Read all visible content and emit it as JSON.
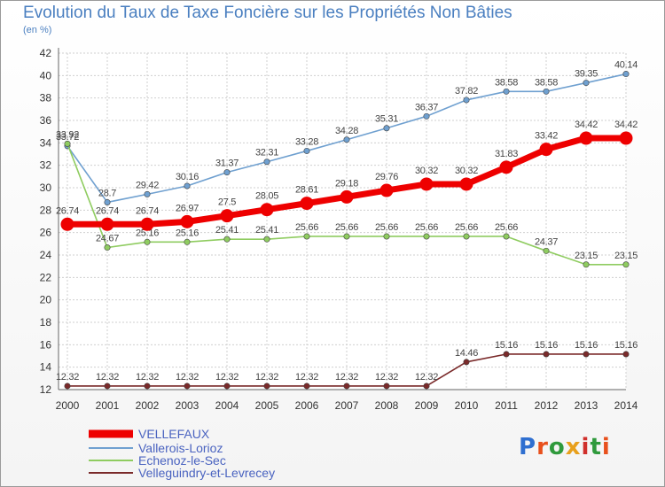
{
  "title": "Evolution du Taux de Taxe Foncière sur les Propriétés Non Bâties",
  "unit": "(en %)",
  "logo": "Proxiti",
  "colors": {
    "title": "#4a7fc0",
    "grid": "#cfcfcf",
    "axis": "#666666"
  },
  "chart_data": {
    "type": "line",
    "x": [
      "2000",
      "2001",
      "2002",
      "2003",
      "2004",
      "2005",
      "2006",
      "2007",
      "2008",
      "2009",
      "2010",
      "2011",
      "2012",
      "2013",
      "2014"
    ],
    "ylim": [
      12,
      42
    ],
    "yticks": [
      12,
      14,
      16,
      18,
      20,
      22,
      24,
      26,
      28,
      30,
      32,
      34,
      36,
      38,
      40,
      42
    ],
    "grid": true,
    "legend_position": "bottom-left",
    "series": [
      {
        "name": "VELLEFAUX",
        "color": "#ee0000",
        "values": [
          26.74,
          26.74,
          26.74,
          26.97,
          27.5,
          28.05,
          28.61,
          29.18,
          29.76,
          30.32,
          30.32,
          31.83,
          33.42,
          34.42,
          34.42
        ],
        "labels": [
          "26.74",
          "26.74",
          "26.74",
          "26.97",
          "27.5",
          "28.05",
          "28.61",
          "29.18",
          "29.76",
          "30.32",
          "30.32",
          "31.83",
          "33.42",
          "34.42",
          "34.42"
        ]
      },
      {
        "name": "Vallerois-Lorioz",
        "color": "#6fa0d0",
        "values": [
          33.72,
          28.7,
          29.42,
          30.16,
          31.37,
          32.31,
          33.28,
          34.28,
          35.31,
          36.37,
          37.82,
          38.58,
          38.58,
          39.35,
          40.14
        ],
        "labels": [
          "33.72",
          "28.7",
          "29.42",
          "30.16",
          "31.37",
          "32.31",
          "33.28",
          "34.28",
          "35.31",
          "36.37",
          "37.82",
          "38.58",
          "38.58",
          "39.35",
          "40.14"
        ]
      },
      {
        "name": "Echenoz-le-Sec",
        "color": "#8fcc60",
        "values": [
          33.92,
          24.67,
          25.16,
          25.16,
          25.41,
          25.41,
          25.66,
          25.66,
          25.66,
          25.66,
          25.66,
          25.66,
          24.37,
          23.15,
          23.15
        ],
        "labels": [
          "33.92",
          "24.67",
          "25.16",
          "25.16",
          "25.41",
          "25.41",
          "25.66",
          "25.66",
          "25.66",
          "25.66",
          "25.66",
          "25.66",
          "24.37",
          "23.15",
          "23.15"
        ]
      },
      {
        "name": "Velleguindry-et-Levrecey",
        "color": "#7a2a2a",
        "values": [
          12.32,
          12.32,
          12.32,
          12.32,
          12.32,
          12.32,
          12.32,
          12.32,
          12.32,
          12.32,
          14.46,
          15.16,
          15.16,
          15.16,
          15.16
        ],
        "labels": [
          "12.32",
          "12.32",
          "12.32",
          "12.32",
          "12.32",
          "12.32",
          "12.32",
          "12.32",
          "12.32",
          "12.32",
          "14.46",
          "15.16",
          "15.16",
          "15.16",
          "15.16"
        ]
      }
    ]
  }
}
